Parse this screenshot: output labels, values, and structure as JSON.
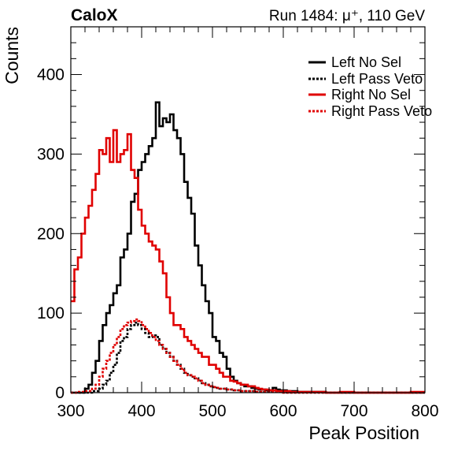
{
  "chart_data": {
    "type": "histogram-step",
    "title_left": "CaloX",
    "title_right": "Run 1484:   μ⁺, 110 GeV",
    "xlabel": "Peak Position",
    "ylabel": "Counts",
    "xlim": [
      300,
      800
    ],
    "ylim": [
      0,
      460
    ],
    "xticks": [
      300,
      400,
      500,
      600,
      700,
      800
    ],
    "yticks": [
      0,
      100,
      200,
      300,
      400
    ],
    "grid": false,
    "legend_position": "top-right",
    "series": [
      {
        "name": "Left No Sel",
        "color": "#000000",
        "dash": "solid",
        "x": [
          300,
          310,
          315,
          320,
          325,
          330,
          335,
          340,
          345,
          350,
          355,
          360,
          365,
          370,
          375,
          380,
          385,
          390,
          395,
          400,
          405,
          410,
          415,
          420,
          425,
          430,
          435,
          440,
          445,
          450,
          455,
          460,
          465,
          470,
          475,
          480,
          485,
          490,
          495,
          500,
          505,
          510,
          515,
          520,
          525,
          530,
          535,
          540,
          545,
          550,
          555,
          560,
          565,
          570,
          575,
          580,
          585,
          590,
          595,
          600,
          605,
          610,
          615,
          620,
          625,
          630,
          640,
          660,
          680,
          700,
          720,
          740,
          760,
          780,
          800
        ],
        "y": [
          0,
          0,
          0,
          5,
          10,
          25,
          40,
          65,
          85,
          100,
          110,
          125,
          135,
          170,
          180,
          200,
          240,
          250,
          280,
          290,
          300,
          310,
          320,
          365,
          335,
          345,
          340,
          350,
          330,
          320,
          300,
          265,
          245,
          225,
          185,
          160,
          135,
          115,
          100,
          70,
          65,
          50,
          45,
          30,
          20,
          15,
          12,
          10,
          8,
          8,
          6,
          5,
          4,
          4,
          3,
          3,
          6,
          4,
          3,
          3,
          2,
          2,
          2,
          1,
          1,
          1,
          1,
          0,
          0,
          0,
          0,
          0,
          0,
          0,
          0
        ]
      },
      {
        "name": "Left Pass Veto",
        "color": "#000000",
        "dash": "dotted",
        "x": [
          300,
          320,
          330,
          340,
          345,
          350,
          355,
          360,
          365,
          370,
          375,
          380,
          385,
          390,
          395,
          400,
          405,
          410,
          415,
          420,
          425,
          430,
          435,
          440,
          445,
          450,
          455,
          460,
          465,
          470,
          475,
          480,
          485,
          490,
          495,
          500,
          505,
          510,
          520,
          530,
          540,
          550,
          560,
          570,
          580,
          600,
          650,
          700,
          750,
          800
        ],
        "y": [
          0,
          0,
          2,
          5,
          10,
          15,
          25,
          35,
          50,
          65,
          70,
          80,
          85,
          88,
          85,
          80,
          75,
          70,
          72,
          70,
          60,
          55,
          50,
          45,
          40,
          35,
          30,
          25,
          22,
          20,
          18,
          15,
          12,
          10,
          8,
          7,
          6,
          5,
          4,
          3,
          2,
          2,
          1,
          1,
          1,
          0,
          0,
          0,
          0,
          0
        ]
      },
      {
        "name": "Right No Sel",
        "color": "#e00000",
        "dash": "solid",
        "x": [
          300,
          305,
          310,
          315,
          320,
          325,
          330,
          335,
          340,
          345,
          350,
          355,
          360,
          365,
          370,
          375,
          380,
          385,
          390,
          395,
          400,
          405,
          410,
          415,
          420,
          425,
          430,
          435,
          440,
          445,
          450,
          455,
          460,
          465,
          470,
          475,
          480,
          485,
          490,
          495,
          500,
          505,
          510,
          515,
          520,
          525,
          530,
          535,
          540,
          545,
          550,
          555,
          560,
          565,
          570,
          575,
          580,
          585,
          590,
          595,
          600,
          610,
          620,
          630,
          640,
          660,
          680,
          700,
          720,
          740,
          760,
          780,
          800
        ],
        "y": [
          115,
          155,
          170,
          200,
          220,
          235,
          255,
          275,
          305,
          300,
          320,
          290,
          330,
          290,
          300,
          305,
          325,
          280,
          270,
          230,
          210,
          200,
          190,
          185,
          180,
          165,
          150,
          120,
          100,
          85,
          85,
          80,
          70,
          65,
          60,
          55,
          50,
          45,
          45,
          35,
          35,
          30,
          25,
          20,
          20,
          15,
          14,
          12,
          10,
          10,
          8,
          8,
          6,
          5,
          4,
          4,
          3,
          3,
          2,
          2,
          2,
          1,
          1,
          1,
          1,
          0,
          1,
          0,
          0,
          0,
          0,
          1,
          1
        ]
      },
      {
        "name": "Right Pass Veto",
        "color": "#e00000",
        "dash": "dotted",
        "x": [
          300,
          310,
          320,
          330,
          335,
          340,
          345,
          350,
          355,
          360,
          365,
          370,
          375,
          380,
          385,
          390,
          395,
          400,
          405,
          410,
          415,
          420,
          425,
          430,
          435,
          440,
          445,
          450,
          455,
          460,
          465,
          470,
          475,
          480,
          485,
          490,
          495,
          500,
          505,
          510,
          520,
          530,
          540,
          550,
          560,
          570,
          580,
          600,
          650,
          700,
          750,
          800
        ],
        "y": [
          0,
          1,
          2,
          5,
          10,
          20,
          30,
          40,
          50,
          60,
          70,
          80,
          85,
          88,
          90,
          92,
          90,
          85,
          80,
          75,
          70,
          65,
          60,
          55,
          50,
          45,
          40,
          35,
          30,
          25,
          22,
          20,
          18,
          15,
          12,
          10,
          8,
          7,
          6,
          5,
          4,
          3,
          2,
          2,
          1,
          1,
          1,
          0,
          0,
          0,
          0,
          0
        ]
      }
    ]
  }
}
